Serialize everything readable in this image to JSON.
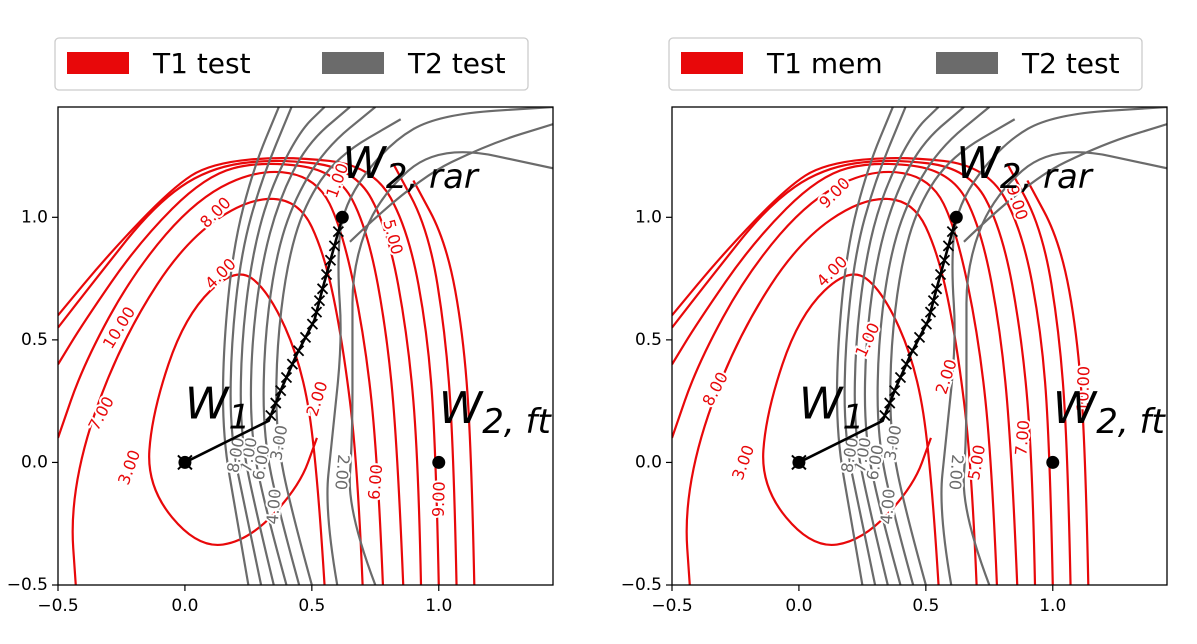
{
  "colors": {
    "red": "#e8080a",
    "gray": "#6b6b6b",
    "traj": "#000000",
    "frame": "#000000",
    "legend_border": "#cccccc"
  },
  "chart_data": [
    {
      "type": "contour",
      "title": "",
      "xlim": [
        -0.5,
        1.45
      ],
      "ylim": [
        -0.5,
        1.45
      ],
      "xticks": [
        -0.5,
        0.0,
        0.5,
        1.0
      ],
      "yticks": [
        -0.5,
        0.0,
        0.5,
        1.0
      ],
      "xtick_labels": [
        "−0.5",
        "0.0",
        "0.5",
        "1.0"
      ],
      "ytick_labels": [
        "−0.5",
        "0.0",
        "0.5",
        "1.0"
      ],
      "legend": [
        {
          "label": "T1 test",
          "color": "#e8080a"
        },
        {
          "label": "T2 test",
          "color": "#6b6b6b"
        }
      ],
      "red_contour_labels": [
        {
          "text": "8.00",
          "x": 0.12,
          "y": 1.02,
          "rot": -45
        },
        {
          "text": "4.00",
          "x": 0.14,
          "y": 0.77,
          "rot": -45
        },
        {
          "text": "10.00",
          "x": -0.26,
          "y": 0.55,
          "rot": -58
        },
        {
          "text": "7.00",
          "x": -0.33,
          "y": 0.2,
          "rot": -62
        },
        {
          "text": "3.00",
          "x": -0.22,
          "y": -0.02,
          "rot": -70
        },
        {
          "text": "2.00",
          "x": 0.52,
          "y": 0.26,
          "rot": -72
        },
        {
          "text": "6.00",
          "x": 0.75,
          "y": -0.08,
          "rot": -85
        },
        {
          "text": "9.00",
          "x": 1.0,
          "y": -0.15,
          "rot": -88
        },
        {
          "text": "5.00",
          "x": 0.82,
          "y": 0.92,
          "rot": 75
        },
        {
          "text": "1.00",
          "x": 0.6,
          "y": 1.15,
          "rot": -70
        }
      ],
      "gray_contour_labels": [
        {
          "text": "2.00",
          "x": 0.62,
          "y": -0.04,
          "rot": 95
        },
        {
          "text": "4.00",
          "x": 0.35,
          "y": -0.18,
          "rot": -85
        },
        {
          "text": "3.00",
          "x": 0.37,
          "y": 0.08,
          "rot": -80
        },
        {
          "text": "6.00",
          "x": 0.3,
          "y": 0.0,
          "rot": -80
        },
        {
          "text": "7.00",
          "x": 0.25,
          "y": 0.03,
          "rot": -80
        },
        {
          "text": "8.00",
          "x": 0.2,
          "y": 0.03,
          "rot": -80
        }
      ],
      "points": [
        {
          "label": "W_1",
          "x": 0.0,
          "y": 0.0
        },
        {
          "label": "W_{2,rar}",
          "x": 0.62,
          "y": 1.0
        },
        {
          "label": "W_{2,ft}",
          "x": 1.0,
          "y": 0.0
        }
      ],
      "point_labels": [
        "W",
        "1",
        "W",
        "2, rar",
        "W",
        "2, ft"
      ],
      "trajectory": {
        "x": [
          0.0,
          0.33,
          0.38,
          0.44,
          0.51,
          0.54,
          0.58,
          0.62
        ],
        "y": [
          0.0,
          0.17,
          0.3,
          0.44,
          0.58,
          0.7,
          0.85,
          1.0
        ]
      }
    },
    {
      "type": "contour",
      "title": "",
      "xlim": [
        -0.5,
        1.45
      ],
      "ylim": [
        -0.5,
        1.45
      ],
      "xticks": [
        -0.5,
        0.0,
        0.5,
        1.0
      ],
      "yticks": [
        -0.5,
        0.0,
        0.5,
        1.0
      ],
      "xtick_labels": [
        "−0.5",
        "0.0",
        "0.5",
        "1.0"
      ],
      "ytick_labels": [
        "−0.5",
        "0.0",
        "0.5",
        "1.0"
      ],
      "legend": [
        {
          "label": "T1 mem",
          "color": "#e8080a"
        },
        {
          "label": "T2 test",
          "color": "#6b6b6b"
        }
      ],
      "red_contour_labels": [
        {
          "text": "9.00",
          "x": 0.14,
          "y": 1.1,
          "rot": -45
        },
        {
          "text": "4.00",
          "x": 0.13,
          "y": 0.78,
          "rot": -45
        },
        {
          "text": "1.00",
          "x": 0.27,
          "y": 0.5,
          "rot": -65
        },
        {
          "text": "8.00",
          "x": -0.33,
          "y": 0.3,
          "rot": -62
        },
        {
          "text": "3.00",
          "x": -0.22,
          "y": 0.0,
          "rot": -70
        },
        {
          "text": "2.00",
          "x": 0.58,
          "y": 0.35,
          "rot": -72
        },
        {
          "text": "5.00",
          "x": 0.7,
          "y": 0.0,
          "rot": -80
        },
        {
          "text": "7.00",
          "x": 0.88,
          "y": 0.1,
          "rot": -85
        },
        {
          "text": "10.00",
          "x": 1.12,
          "y": 0.3,
          "rot": -88
        },
        {
          "text": "9.00",
          "x": 0.86,
          "y": 1.06,
          "rot": 72
        }
      ],
      "gray_contour_labels": [
        {
          "text": "2.00",
          "x": 0.62,
          "y": -0.04,
          "rot": 95
        },
        {
          "text": "4.00",
          "x": 0.35,
          "y": -0.18,
          "rot": -85
        },
        {
          "text": "3.00",
          "x": 0.37,
          "y": 0.08,
          "rot": -80
        },
        {
          "text": "6.00",
          "x": 0.3,
          "y": 0.0,
          "rot": -80
        },
        {
          "text": "7.00",
          "x": 0.25,
          "y": 0.03,
          "rot": -80
        },
        {
          "text": "8.00",
          "x": 0.2,
          "y": 0.03,
          "rot": -80
        }
      ],
      "points": [
        {
          "label": "W_1",
          "x": 0.0,
          "y": 0.0
        },
        {
          "label": "W_{2,rar}",
          "x": 0.62,
          "y": 1.0
        },
        {
          "label": "W_{2,ft}",
          "x": 1.0,
          "y": 0.0
        }
      ],
      "point_labels": [
        "W",
        "1",
        "W",
        "2, rar",
        "W",
        "2, ft"
      ],
      "trajectory": {
        "x": [
          0.0,
          0.33,
          0.38,
          0.44,
          0.51,
          0.54,
          0.58,
          0.62
        ],
        "y": [
          0.0,
          0.17,
          0.3,
          0.44,
          0.58,
          0.7,
          0.85,
          1.0
        ]
      }
    }
  ]
}
